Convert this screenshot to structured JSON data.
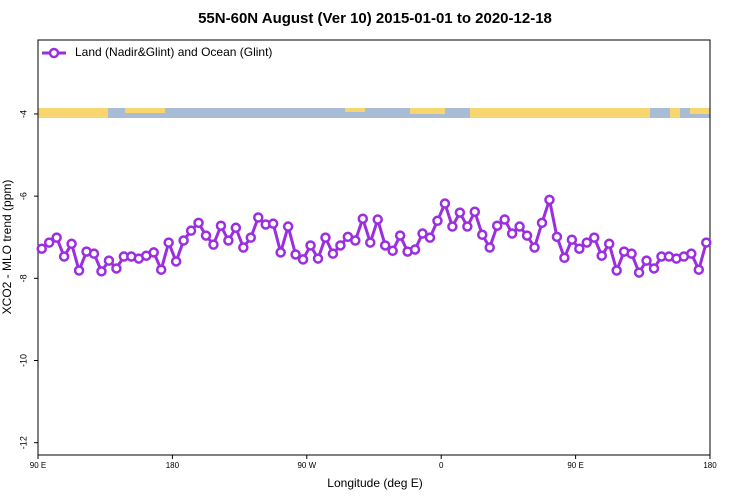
{
  "chart_data": {
    "type": "line",
    "title": "55N-60N August (Ver 10)   2015-01-01 to 2020-12-18",
    "xlabel": "Longitude (deg E)",
    "ylabel": "XCO2 - MLO trend (ppm)",
    "x": [
      92.5,
      97.5,
      102.5,
      107.5,
      112.5,
      117.5,
      122.5,
      127.5,
      132.5,
      137.5,
      142.5,
      147.5,
      152.5,
      157.5,
      162.5,
      167.5,
      172.5,
      177.5,
      182.5,
      187.5,
      192.5,
      197.5,
      202.5,
      207.5,
      212.5,
      217.5,
      222.5,
      227.5,
      232.5,
      237.5,
      242.5,
      247.5,
      252.5,
      257.5,
      262.5,
      267.5,
      272.5,
      277.5,
      282.5,
      287.5,
      292.5,
      297.5,
      302.5,
      307.5,
      312.5,
      317.5,
      322.5,
      327.5,
      332.5,
      337.5,
      342.5,
      347.5,
      352.5,
      357.5,
      362.5,
      367.5,
      372.5,
      377.5,
      382.5,
      387.5,
      392.5,
      397.5,
      402.5,
      407.5,
      412.5,
      417.5,
      422.5,
      427.5,
      432.5,
      437.5,
      442.5,
      447.5,
      452.5,
      457.5,
      462.5,
      467.5,
      472.5,
      477.5,
      482.5,
      487.5,
      492.5,
      497.5,
      502.5,
      507.5,
      512.5,
      517.5,
      522.5,
      527.5,
      532.5,
      537.5
    ],
    "series": [
      {
        "name": "Land (Nadir&Glint) and Ocean (Glint)",
        "color": "#9b2fe0",
        "values": [
          -7.28,
          -7.13,
          -7.01,
          -7.47,
          -7.16,
          -7.81,
          -7.35,
          -7.4,
          -7.83,
          -7.57,
          -7.76,
          -7.47,
          -7.47,
          -7.52,
          -7.45,
          -7.37,
          -7.79,
          -7.13,
          -7.59,
          -7.08,
          -6.84,
          -6.65,
          -6.96,
          -7.18,
          -6.72,
          -7.08,
          -6.77,
          -7.25,
          -7.01,
          -6.52,
          -6.69,
          -6.67,
          -7.37,
          -6.74,
          -7.42,
          -7.54,
          -7.2,
          -7.52,
          -7.01,
          -7.4,
          -7.2,
          -6.99,
          -7.08,
          -6.55,
          -7.13,
          -6.57,
          -7.2,
          -7.33,
          -6.96,
          -7.35,
          -7.3,
          -6.91,
          -7.01,
          -6.6,
          -6.18,
          -6.74,
          -6.4,
          -6.74,
          -6.38,
          -6.94,
          -7.25,
          -6.72,
          -6.57,
          -6.91,
          -6.74,
          -6.96,
          -7.25,
          -6.65,
          -6.09,
          -6.99,
          -7.5,
          -7.06,
          -7.28,
          -7.13,
          -7.01,
          -7.45,
          -7.16,
          -7.81,
          -7.35,
          -7.4,
          -7.86,
          -7.57,
          -7.76,
          -7.47,
          -7.47,
          -7.52,
          -7.47,
          -7.4,
          -7.79,
          -7.13
        ]
      }
    ],
    "xlim": [
      90,
      540
    ],
    "xticks": [
      {
        "value": 90,
        "label": "90 E"
      },
      {
        "value": 180,
        "label": "180"
      },
      {
        "value": 270,
        "label": "90 W"
      },
      {
        "value": 360,
        "label": "0"
      },
      {
        "value": 450,
        "label": "90 E"
      },
      {
        "value": 540,
        "label": "180"
      }
    ],
    "ylim": [
      -12.3,
      -2.2
    ],
    "yticks": [
      -12,
      -10,
      -8,
      -6,
      -4
    ],
    "legend": "upper left"
  }
}
